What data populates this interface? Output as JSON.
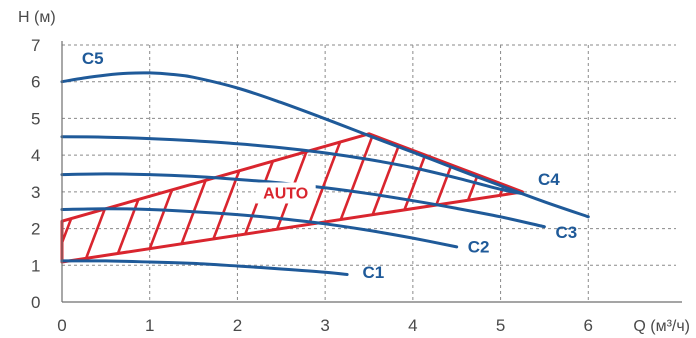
{
  "chart_data": {
    "type": "line",
    "xlabel": "Q (м³/ч)",
    "ylabel": "H (м)",
    "xlim": [
      0,
      7
    ],
    "ylim": [
      0,
      7
    ],
    "x_ticks": [
      0,
      1,
      2,
      3,
      4,
      5,
      6
    ],
    "y_ticks": [
      0,
      1,
      2,
      3,
      4,
      5,
      6,
      7
    ],
    "grid": true,
    "colors": {
      "curve": "#1f5a99",
      "auto": "#d9252e",
      "axis": "#6f6f6f",
      "text": "#4a4a4a"
    },
    "series": [
      {
        "name": "C1",
        "points": [
          [
            0,
            1.12
          ],
          [
            0.5,
            1.12
          ],
          [
            1.0,
            1.09
          ],
          [
            1.5,
            1.05
          ],
          [
            2.0,
            0.98
          ],
          [
            2.5,
            0.9
          ],
          [
            3.0,
            0.81
          ],
          [
            3.25,
            0.75
          ]
        ]
      },
      {
        "name": "C2",
        "points": [
          [
            0,
            2.52
          ],
          [
            0.5,
            2.54
          ],
          [
            1.0,
            2.52
          ],
          [
            1.5,
            2.46
          ],
          [
            2.0,
            2.38
          ],
          [
            2.5,
            2.27
          ],
          [
            3.0,
            2.13
          ],
          [
            3.5,
            1.95
          ],
          [
            4.0,
            1.74
          ],
          [
            4.5,
            1.5
          ]
        ]
      },
      {
        "name": "C3",
        "points": [
          [
            0,
            3.47
          ],
          [
            0.5,
            3.49
          ],
          [
            1.0,
            3.47
          ],
          [
            1.5,
            3.42
          ],
          [
            2.0,
            3.34
          ],
          [
            2.5,
            3.24
          ],
          [
            3.0,
            3.11
          ],
          [
            3.5,
            2.95
          ],
          [
            4.0,
            2.76
          ],
          [
            4.5,
            2.55
          ],
          [
            5.0,
            2.32
          ],
          [
            5.5,
            2.05
          ]
        ]
      },
      {
        "name": "C4",
        "points": [
          [
            0,
            4.5
          ],
          [
            0.5,
            4.49
          ],
          [
            1.0,
            4.45
          ],
          [
            1.5,
            4.39
          ],
          [
            2.0,
            4.31
          ],
          [
            2.5,
            4.2
          ],
          [
            3.0,
            4.06
          ],
          [
            3.5,
            3.88
          ],
          [
            4.0,
            3.66
          ],
          [
            4.5,
            3.38
          ],
          [
            5.0,
            3.07
          ],
          [
            5.25,
            2.95
          ]
        ]
      },
      {
        "name": "C5",
        "points": [
          [
            0,
            6.0
          ],
          [
            0.25,
            6.1
          ],
          [
            0.5,
            6.18
          ],
          [
            0.75,
            6.23
          ],
          [
            1.0,
            6.24
          ],
          [
            1.25,
            6.2
          ],
          [
            1.5,
            6.12
          ],
          [
            2.0,
            5.83
          ],
          [
            2.5,
            5.43
          ],
          [
            3.0,
            4.99
          ],
          [
            3.5,
            4.53
          ],
          [
            4.0,
            4.08
          ],
          [
            4.5,
            3.62
          ],
          [
            5.0,
            3.17
          ],
          [
            5.5,
            2.73
          ],
          [
            6.0,
            2.32
          ]
        ]
      }
    ],
    "auto_zone": {
      "label": "AUTO",
      "polygon": [
        [
          0,
          1.09
        ],
        [
          5.25,
          3.0
        ],
        [
          3.5,
          4.58
        ],
        [
          0,
          2.2
        ]
      ]
    },
    "curve_labels": [
      {
        "text": "C1",
        "x": 3.55,
        "y": 0.66
      },
      {
        "text": "C2",
        "x": 4.75,
        "y": 1.35
      },
      {
        "text": "C3",
        "x": 5.75,
        "y": 1.75
      },
      {
        "text": "C4",
        "x": 5.55,
        "y": 3.18
      },
      {
        "text": "C5",
        "x": 0.35,
        "y": 6.48
      }
    ],
    "auto_label_pos": {
      "x": 2.55,
      "y": 2.82
    }
  }
}
